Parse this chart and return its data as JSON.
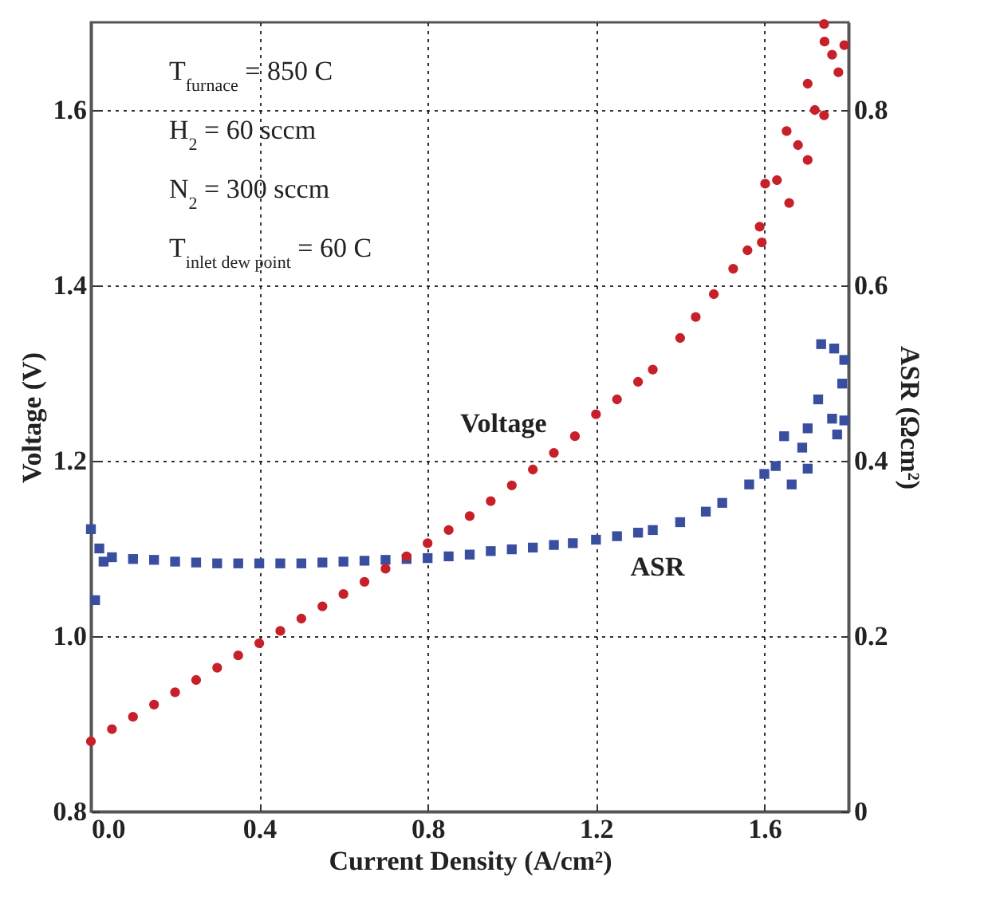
{
  "chart_data": {
    "type": "scatter",
    "xlabel": "Current Density (A/cm²)",
    "ylabel": "Voltage (V)",
    "y2label": "ASR (Ωcm²)",
    "xlim": [
      0,
      1.8
    ],
    "xticks": [
      {
        "value": 0,
        "label": "0.0"
      },
      0.4,
      0.8,
      1.2,
      1.6
    ],
    "ylim": [
      0.8,
      1.7
    ],
    "yticks": [
      0.8,
      {
        "value": 1,
        "label": "1.0"
      },
      1.2,
      1.4,
      1.6
    ],
    "y2lim": [
      0,
      0.9
    ],
    "y2ticks": [
      0,
      0.2,
      0.4,
      0.6,
      0.8
    ],
    "grid": true,
    "annotations": [
      "T$_{furnace}$ = 850 C",
      "H$_{2}$ = 60 sccm",
      "N$_{2}$ = 300 sccm",
      "T$_{inlet dew point}$ = 60 C"
    ],
    "series": [
      {
        "name": "Voltage",
        "color": "#c8202a",
        "marker": "circle",
        "x": [
          0,
          0.05,
          0.1,
          0.15,
          0.2,
          0.25,
          0.3,
          0.35,
          0.4,
          0.45,
          0.5,
          0.55,
          0.6,
          0.65,
          0.7,
          0.75,
          0.8,
          0.85,
          0.9,
          0.95,
          1.0,
          1.05,
          1.1,
          1.15,
          1.2,
          1.25,
          1.3,
          1.335,
          1.4,
          1.437,
          1.48,
          1.526,
          1.56,
          1.594,
          1.589,
          1.602,
          1.63,
          1.659,
          1.653,
          1.68,
          1.703,
          1.703,
          1.72,
          1.742,
          1.743,
          1.742,
          1.761,
          1.776,
          1.79
        ],
        "values": [
          0.88,
          0.894,
          0.908,
          0.922,
          0.936,
          0.95,
          0.964,
          0.978,
          0.992,
          1.006,
          1.02,
          1.034,
          1.048,
          1.062,
          1.077,
          1.091,
          1.106,
          1.121,
          1.137,
          1.154,
          1.172,
          1.19,
          1.209,
          1.228,
          1.253,
          1.27,
          1.29,
          1.304,
          1.34,
          1.364,
          1.39,
          1.419,
          1.44,
          1.449,
          1.467,
          1.516,
          1.52,
          1.494,
          1.576,
          1.56,
          1.543,
          1.63,
          1.6,
          1.594,
          1.678,
          1.698,
          1.663,
          1.643,
          1.674
        ]
      },
      {
        "name": "ASR",
        "color": "#3a4ea0",
        "marker": "square",
        "axis": "y2",
        "x": [
          0,
          0.01,
          0.02,
          0.03,
          0.05,
          0.1,
          0.15,
          0.2,
          0.25,
          0.3,
          0.35,
          0.4,
          0.45,
          0.5,
          0.55,
          0.6,
          0.65,
          0.7,
          0.75,
          0.8,
          0.85,
          0.9,
          0.95,
          1.0,
          1.05,
          1.1,
          1.145,
          1.2,
          1.25,
          1.3,
          1.335,
          1.4,
          1.461,
          1.5,
          1.564,
          1.6,
          1.627,
          1.647,
          1.665,
          1.69,
          1.703,
          1.703,
          1.728,
          1.735,
          1.761,
          1.766,
          1.773,
          1.785,
          1.79,
          1.79
        ],
        "values": [
          0.322,
          0.241,
          0.3,
          0.285,
          0.29,
          0.288,
          0.287,
          0.285,
          0.284,
          0.283,
          0.283,
          0.283,
          0.283,
          0.283,
          0.284,
          0.285,
          0.286,
          0.287,
          0.288,
          0.289,
          0.291,
          0.293,
          0.297,
          0.299,
          0.301,
          0.304,
          0.306,
          0.31,
          0.314,
          0.318,
          0.321,
          0.33,
          0.342,
          0.352,
          0.373,
          0.385,
          0.394,
          0.428,
          0.373,
          0.415,
          0.391,
          0.437,
          0.47,
          0.533,
          0.448,
          0.528,
          0.43,
          0.488,
          0.446,
          0.515
        ]
      }
    ]
  }
}
